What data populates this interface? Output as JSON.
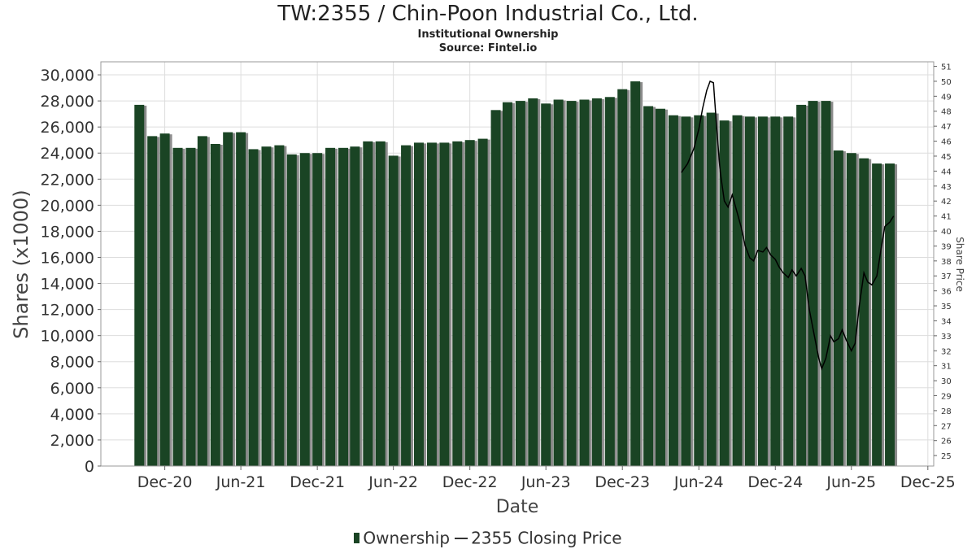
{
  "header": {
    "title": "TW:2355 / Chin-Poon Industrial Co., Ltd.",
    "subtitle": "Institutional Ownership",
    "source": "Source: Fintel.io"
  },
  "legend": {
    "ownership_label": "Ownership",
    "price_label": "2355 Closing Price"
  },
  "colors": {
    "bar": "#1a4424",
    "bar_shadow": "#8c8c8c",
    "line": "#000000",
    "grid": "#dddddd",
    "plot_border": "#999999"
  },
  "chart_data": {
    "type": "bar",
    "title": "TW:2355 / Chin-Poon Industrial Co., Ltd.",
    "xlabel": "Date",
    "ylabel": "Shares (x1000)",
    "y2label": "Share Price",
    "ylim": [
      0,
      31000
    ],
    "y2lim": [
      24.3,
      51.3
    ],
    "grid": true,
    "legend_position": "bottom",
    "x_range": [
      "2020-07-01",
      "2025-12-15"
    ],
    "x_ticks": [
      {
        "label": "Dec-20",
        "date": "2020-12-01"
      },
      {
        "label": "Jun-21",
        "date": "2021-06-01"
      },
      {
        "label": "Dec-21",
        "date": "2021-12-01"
      },
      {
        "label": "Jun-22",
        "date": "2022-06-01"
      },
      {
        "label": "Dec-22",
        "date": "2022-12-01"
      },
      {
        "label": "Jun-23",
        "date": "2023-06-01"
      },
      {
        "label": "Dec-23",
        "date": "2023-12-01"
      },
      {
        "label": "Jun-24",
        "date": "2024-06-01"
      },
      {
        "label": "Dec-24",
        "date": "2024-12-01"
      },
      {
        "label": "Jun-25",
        "date": "2025-06-01"
      },
      {
        "label": "Dec-25",
        "date": "2025-12-01"
      }
    ],
    "y_ticks": [
      "0",
      "2,000",
      "4,000",
      "6,000",
      "8,000",
      "10,000",
      "12,000",
      "14,000",
      "16,000",
      "18,000",
      "20,000",
      "22,000",
      "24,000",
      "26,000",
      "28,000",
      "30,000"
    ],
    "y2_ticks": [
      "25",
      "26",
      "27",
      "28",
      "29",
      "30",
      "31",
      "32",
      "33",
      "34",
      "35",
      "36",
      "37",
      "38",
      "39",
      "40",
      "41",
      "42",
      "43",
      "44",
      "45",
      "46",
      "47",
      "48",
      "49",
      "50",
      "51"
    ],
    "series": [
      {
        "name": "Ownership",
        "type": "bar",
        "dates": [
          "2020-10-01",
          "2020-11-01",
          "2020-12-01",
          "2021-01-01",
          "2021-02-01",
          "2021-03-01",
          "2021-04-01",
          "2021-05-01",
          "2021-06-01",
          "2021-07-01",
          "2021-08-01",
          "2021-09-01",
          "2021-10-01",
          "2021-11-01",
          "2021-12-01",
          "2022-01-01",
          "2022-02-01",
          "2022-03-01",
          "2022-04-01",
          "2022-05-01",
          "2022-06-01",
          "2022-07-01",
          "2022-08-01",
          "2022-09-01",
          "2022-10-01",
          "2022-11-01",
          "2022-12-01",
          "2023-01-01",
          "2023-02-01",
          "2023-03-01",
          "2023-04-01",
          "2023-05-01",
          "2023-06-01",
          "2023-07-01",
          "2023-08-01",
          "2023-09-01",
          "2023-10-01",
          "2023-11-01",
          "2023-12-01",
          "2024-01-01",
          "2024-02-01",
          "2024-03-01",
          "2024-04-01",
          "2024-05-01",
          "2024-06-01",
          "2024-07-01",
          "2024-08-01",
          "2024-09-01",
          "2024-10-01",
          "2024-11-01",
          "2024-12-01",
          "2025-01-01",
          "2025-02-01",
          "2025-03-01",
          "2025-04-01",
          "2025-05-01",
          "2025-06-01",
          "2025-07-01",
          "2025-08-01",
          "2025-09-01"
        ],
        "values": [
          27700,
          25300,
          25500,
          24400,
          24400,
          25300,
          24700,
          25600,
          25600,
          24300,
          24500,
          24600,
          23900,
          24000,
          24000,
          24400,
          24400,
          24500,
          24900,
          24900,
          23800,
          24600,
          24800,
          24800,
          24800,
          24900,
          25000,
          25100,
          27300,
          27900,
          28000,
          28200,
          27800,
          28100,
          28000,
          28100,
          28200,
          28300,
          28900,
          29500,
          27600,
          27400,
          26900,
          26800,
          26900,
          27100,
          26500,
          26900,
          26800,
          26800,
          26800,
          26800,
          27700,
          28000,
          28000,
          24200,
          24000,
          23600,
          23200,
          23200
        ]
      },
      {
        "name": "2355 Closing Price",
        "type": "line",
        "dates": [
          "2024-04-20",
          "2024-05-05",
          "2024-05-20",
          "2024-06-01",
          "2024-06-10",
          "2024-06-20",
          "2024-06-28",
          "2024-07-06",
          "2024-07-14",
          "2024-07-22",
          "2024-08-01",
          "2024-08-10",
          "2024-08-20",
          "2024-09-01",
          "2024-09-10",
          "2024-09-20",
          "2024-10-01",
          "2024-10-10",
          "2024-10-20",
          "2024-11-01",
          "2024-11-10",
          "2024-11-20",
          "2024-12-01",
          "2024-12-10",
          "2024-12-20",
          "2025-01-01",
          "2025-01-10",
          "2025-01-20",
          "2025-02-01",
          "2025-02-10",
          "2025-02-20",
          "2025-03-01",
          "2025-03-08",
          "2025-03-15",
          "2025-03-22",
          "2025-04-01",
          "2025-04-07",
          "2025-04-12",
          "2025-04-20",
          "2025-05-01",
          "2025-05-10",
          "2025-05-20",
          "2025-06-01",
          "2025-06-10",
          "2025-06-20",
          "2025-07-01",
          "2025-07-10",
          "2025-07-20",
          "2025-08-01",
          "2025-08-10",
          "2025-08-20",
          "2025-09-01",
          "2025-09-10"
        ],
        "values": [
          43.9,
          44.5,
          45.5,
          46.8,
          48.2,
          49.4,
          50.0,
          49.9,
          46.8,
          44.0,
          42.0,
          41.6,
          42.4,
          41.2,
          40.3,
          39.0,
          38.2,
          38.0,
          38.7,
          38.6,
          38.9,
          38.4,
          38.1,
          37.6,
          37.2,
          36.9,
          37.4,
          37.0,
          37.5,
          37.0,
          34.8,
          33.5,
          32.5,
          31.5,
          30.8,
          31.5,
          32.3,
          33.0,
          32.6,
          32.8,
          33.4,
          32.7,
          32.0,
          32.5,
          35.0,
          37.2,
          36.6,
          36.4,
          37.0,
          38.6,
          40.3,
          40.6,
          41.0
        ]
      }
    ]
  }
}
